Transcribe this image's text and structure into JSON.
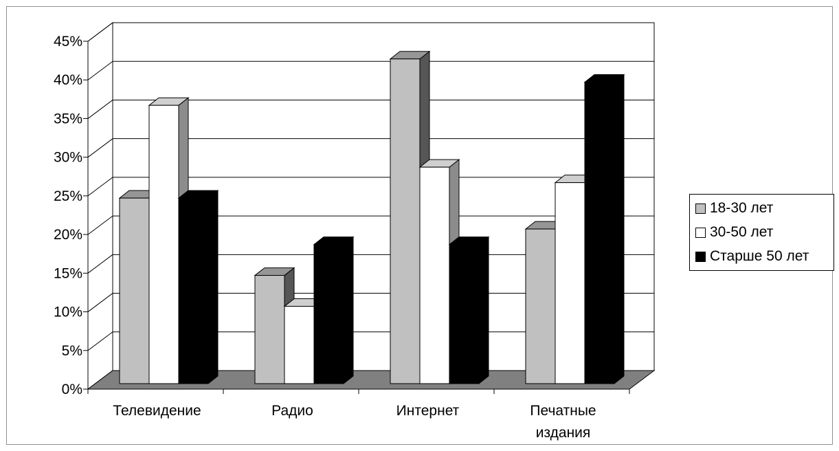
{
  "chart_data": {
    "type": "bar",
    "style": "3d-clustered",
    "categories": [
      "Телевидение",
      "Радио",
      "Интернет",
      "Печатные издания"
    ],
    "category_lines": [
      [
        "Телевидение"
      ],
      [
        "Радио"
      ],
      [
        "Интернет"
      ],
      [
        "Печатные",
        "издания"
      ]
    ],
    "series": [
      {
        "name": "18-30 лет",
        "values": [
          0.24,
          0.14,
          0.42,
          0.2
        ],
        "color": "#c0c0c0"
      },
      {
        "name": "30-50 лет",
        "values": [
          0.36,
          0.1,
          0.28,
          0.26
        ],
        "color": "#ffffff"
      },
      {
        "name": "Старше 50 лет",
        "values": [
          0.24,
          0.18,
          0.18,
          0.39
        ],
        "color": "#000000"
      }
    ],
    "ylim": [
      0,
      0.45
    ],
    "yticks": [
      "0%",
      "5%",
      "10%",
      "15%",
      "20%",
      "25%",
      "30%",
      "35%",
      "40%",
      "45%"
    ],
    "grid": true,
    "legend_position": "right",
    "floor_color": "#808080"
  }
}
